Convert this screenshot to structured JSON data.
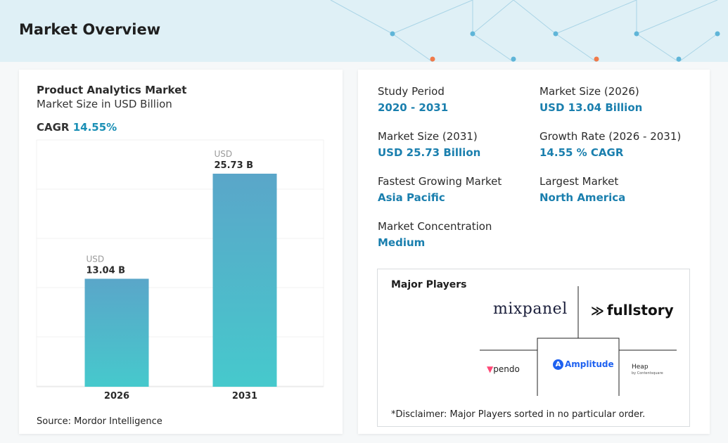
{
  "header": {
    "title": "Market Overview"
  },
  "chart_card": {
    "title": "Product Analytics Market",
    "subtitle": "Market Size in USD Billion",
    "cagr_label": "CAGR",
    "cagr_value": "14.55%",
    "source": "Source: Mordor Intelligence"
  },
  "chart_data": {
    "type": "bar",
    "title": "Product Analytics Market",
    "subtitle": "Market Size in USD Billion",
    "categories": [
      "2026",
      "2031"
    ],
    "values": [
      13.04,
      25.73
    ],
    "data_labels": [
      {
        "unit": "USD",
        "value": "13.04 B"
      },
      {
        "unit": "USD",
        "value": "25.73 B"
      }
    ],
    "grid": true,
    "colors": {
      "top": "#5aa6c9",
      "bottom": "#46c9cc"
    }
  },
  "stats": [
    {
      "label": "Study Period",
      "value": "2020 - 2031"
    },
    {
      "label": "Market Size (2026)",
      "value": "USD 13.04 Billion"
    },
    {
      "label": "Market Size (2031)",
      "value": "USD 25.73 Billion"
    },
    {
      "label": "Growth Rate (2026 - 2031)",
      "value": "14.55 % CAGR"
    },
    {
      "label": "Fastest Growing Market",
      "value": "Asia Pacific"
    },
    {
      "label": "Largest Market",
      "value": "North America"
    },
    {
      "label": "Market Concentration",
      "value": "Medium"
    }
  ],
  "players": {
    "title": "Major Players",
    "logos": {
      "mixpanel": "mixpanel",
      "fullstory": "fullstory",
      "pendo": "pendo",
      "amplitude": "Amplitude",
      "heap": "Heap",
      "heap_sub": "by Contentsquare"
    },
    "disclaimer": "*Disclaimer: Major Players sorted in no particular order."
  },
  "colors": {
    "accent": "#1a7fae",
    "header_bg": "#dff0f6"
  }
}
